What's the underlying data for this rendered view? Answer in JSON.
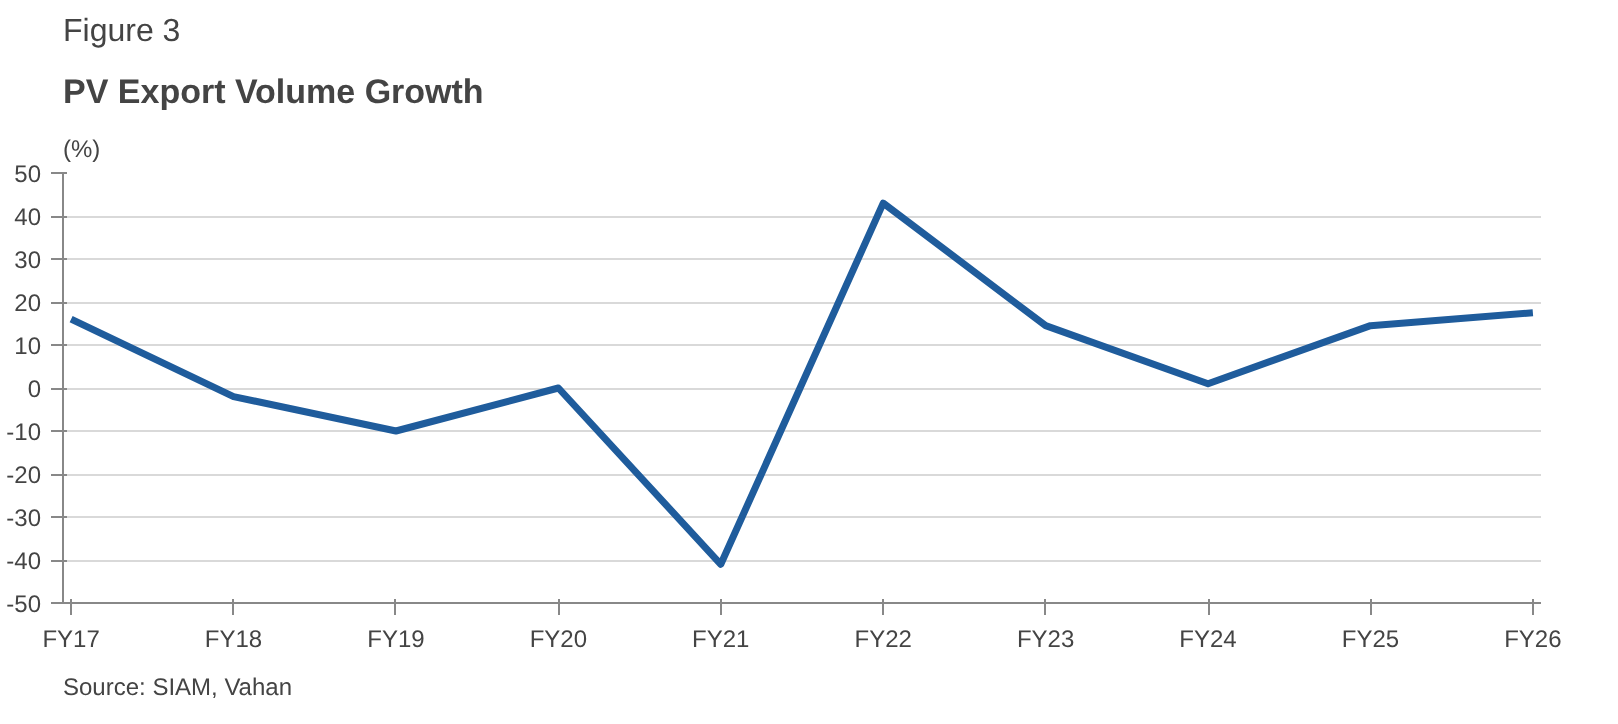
{
  "chart_data": {
    "type": "line",
    "title": "Figure 3",
    "subtitle": "PV Export Volume Growth",
    "ylabel": "(%)",
    "categories": [
      "FY17",
      "FY18",
      "FY19",
      "FY20",
      "FY21",
      "FY22",
      "FY23",
      "FY24",
      "FY25",
      "FY26"
    ],
    "series": [
      {
        "color": "#1f5c9c",
        "values": [
          16,
          -2,
          -10,
          0,
          -41,
          43,
          14.5,
          1,
          14.5,
          17.5
        ]
      }
    ],
    "ylim": [
      -50,
      50
    ],
    "yticks": [
      -50,
      -40,
      -30,
      -20,
      -10,
      0,
      10,
      20,
      30,
      40,
      50
    ],
    "grid": "y",
    "marker": "none",
    "line_style": "solid",
    "annotations": [
      "Source: SIAM, Vahan"
    ]
  }
}
